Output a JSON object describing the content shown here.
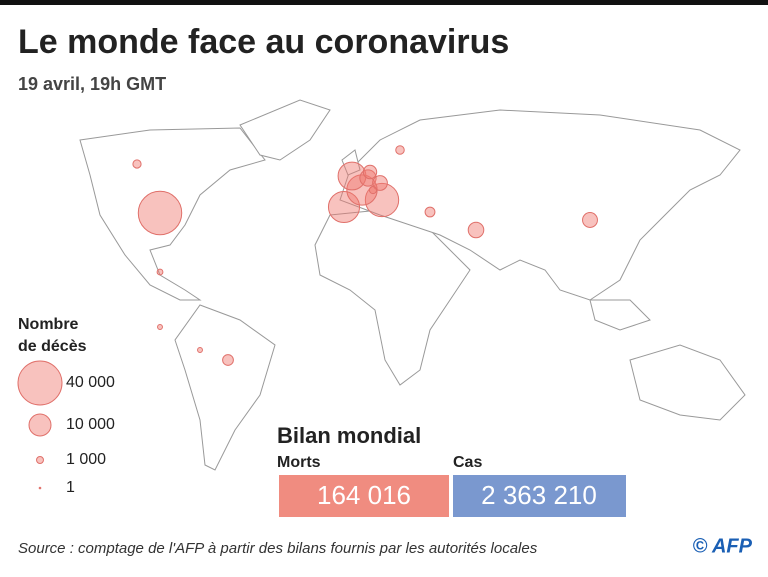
{
  "header": {
    "title": "Le monde face au coronavirus",
    "subtitle": "19 avril, 19h GMT"
  },
  "legend": {
    "title_line1": "Nombre",
    "title_line2": "de décès",
    "sizes": [
      {
        "value": 40000,
        "label": "40 000"
      },
      {
        "value": 10000,
        "label": "10 000"
      },
      {
        "value": 1000,
        "label": "1 000"
      },
      {
        "value": 1,
        "label": "1"
      }
    ]
  },
  "map": {
    "bubbles": [
      39000,
      23000,
      20000,
      19000,
      16000,
      5500,
      5000,
      4600,
      4500,
      3700,
      2400,
      2000,
      1400,
      1500,
      1100,
      700,
      500,
      500
    ]
  },
  "totals": {
    "title": "Bilan mondial",
    "deaths": {
      "label": "Morts",
      "value": {
        "value": 164016,
        "label": "164 016"
      }
    },
    "cases": {
      "label": "Cas",
      "value": {
        "value": 2363210,
        "label": "2 363 210"
      }
    }
  },
  "footer": {
    "source": "Source : comptage de l'AFP à partir des bilans fournis par les autorités locales",
    "credit": "© AFP"
  }
}
